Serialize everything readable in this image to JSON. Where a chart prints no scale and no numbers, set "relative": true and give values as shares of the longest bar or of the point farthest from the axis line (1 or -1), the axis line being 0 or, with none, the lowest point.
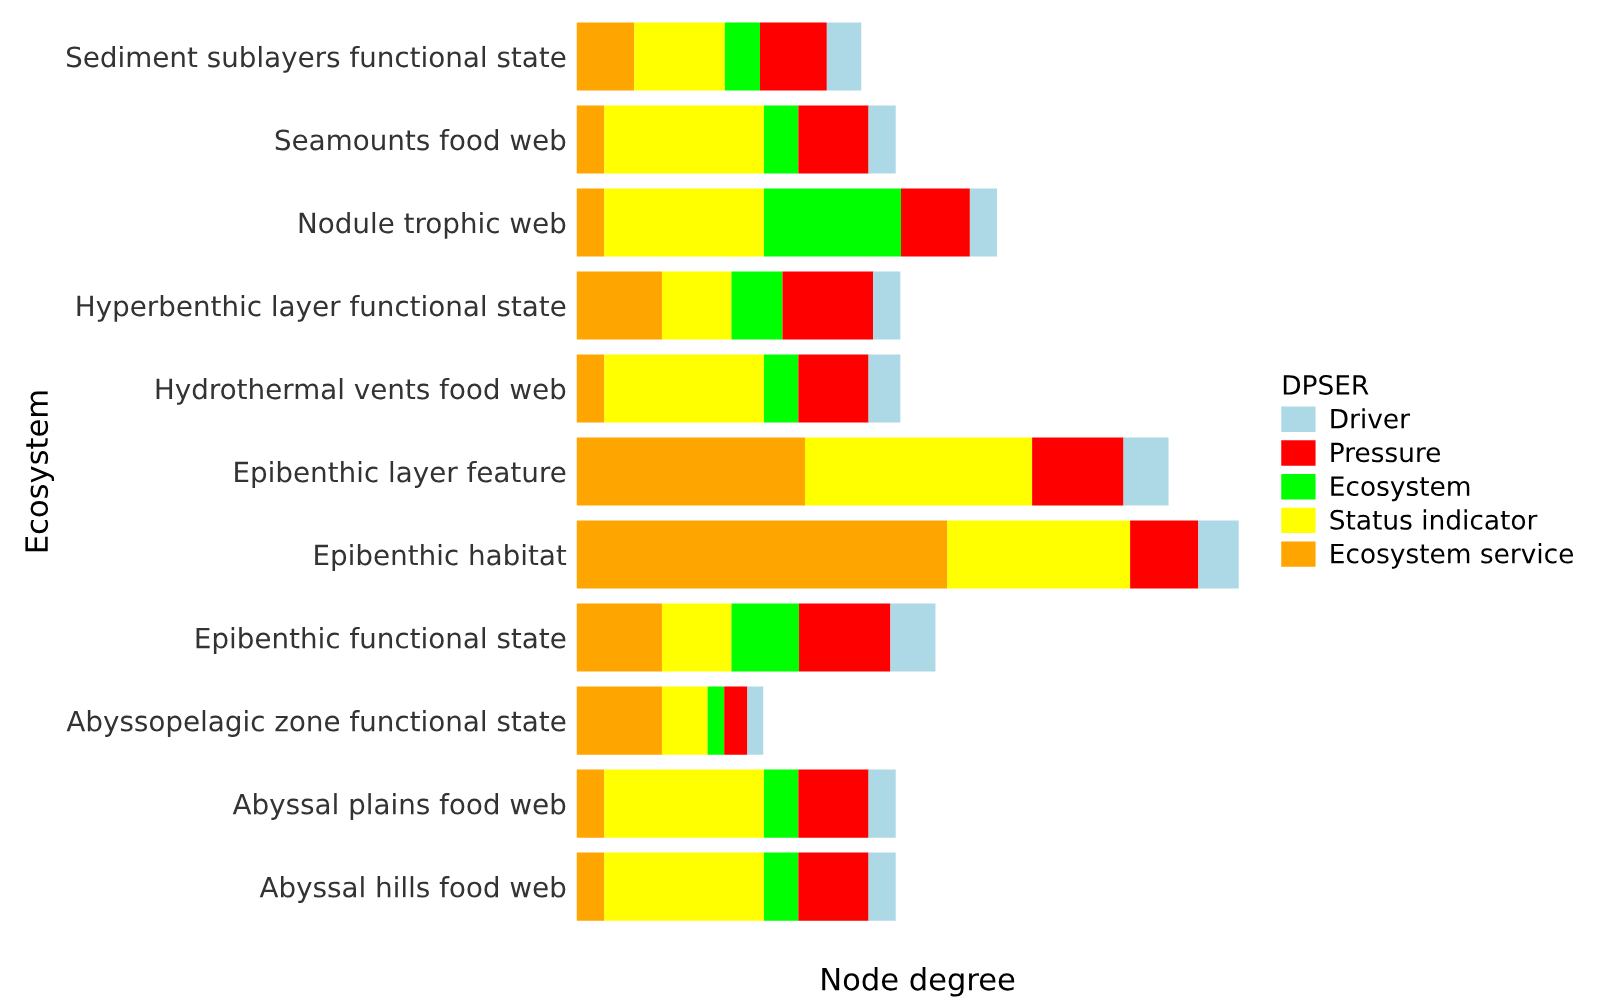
{
  "chart_data": {
    "type": "bar",
    "orientation": "horizontal",
    "stacked": true,
    "relative": true,
    "xlabel": "Node degree",
    "ylabel": "Ecosystem",
    "legend_title": "DPSER",
    "legend": "right",
    "grid": false,
    "tick_labels": "y",
    "categories": [
      "Sediment sublayers functional state",
      "Seamounts food web",
      "Nodule trophic web",
      "Hyperbenthic layer functional state",
      "Hydrothermal vents food web",
      "Epibenthic layer feature",
      "Epibenthic habitat",
      "Epibenthic functional state",
      "Abyssopelagic zone functional state",
      "Abyssal plains food web",
      "Abyssal hills food web"
    ],
    "series": [
      {
        "name": "Ecosystem service",
        "color": "#ffa500",
        "values": [
          0.087,
          0.042,
          0.042,
          0.129,
          0.042,
          0.345,
          0.56,
          0.129,
          0.129,
          0.042,
          0.042
        ]
      },
      {
        "name": "Status indicator",
        "color": "#ffff00",
        "values": [
          0.137,
          0.241,
          0.241,
          0.105,
          0.241,
          0.343,
          0.276,
          0.105,
          0.069,
          0.241,
          0.241
        ]
      },
      {
        "name": "Ecosystem",
        "color": "#00ff00",
        "values": [
          0.053,
          0.052,
          0.207,
          0.077,
          0.052,
          0,
          0,
          0.102,
          0.025,
          0.052,
          0.052
        ]
      },
      {
        "name": "Pressure",
        "color": "#ff0000",
        "values": [
          0.101,
          0.106,
          0.104,
          0.137,
          0.106,
          0.138,
          0.103,
          0.138,
          0.035,
          0.106,
          0.106
        ]
      },
      {
        "name": "Driver",
        "color": "#add8e6",
        "values": [
          0.052,
          0.041,
          0.041,
          0.041,
          0.048,
          0.068,
          0.061,
          0.068,
          0.024,
          0.041,
          0.041
        ]
      }
    ]
  }
}
